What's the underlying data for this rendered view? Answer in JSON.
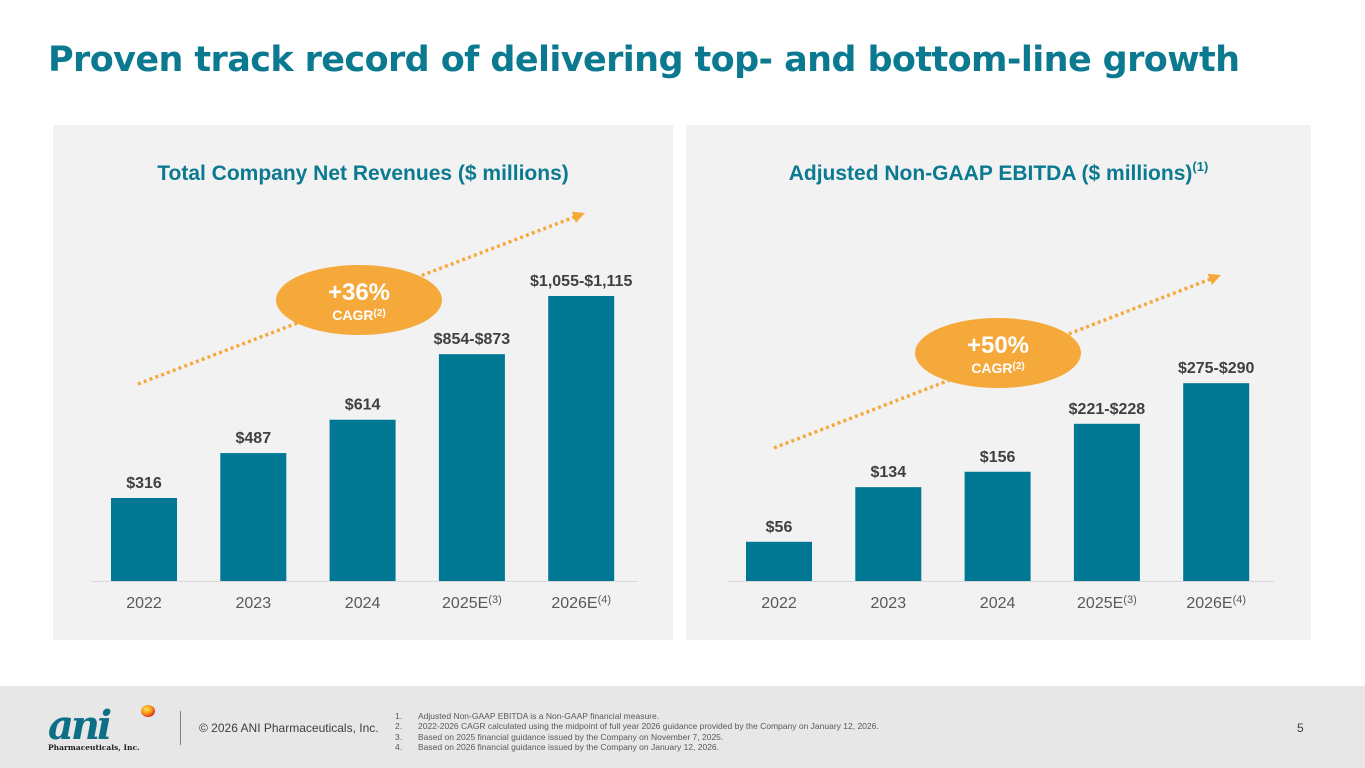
{
  "page": {
    "title": "Proven track record of delivering top- and bottom-line growth",
    "page_number": "5"
  },
  "colors": {
    "brand_teal": "#0b7a91",
    "bar": "#007893",
    "accent_orange": "#f6a93b",
    "label_dark": "#404040",
    "axis_label": "#595959"
  },
  "chart_data": [
    {
      "type": "bar",
      "title": "Total Company Net Revenues ($ millions)",
      "title_footnote": "",
      "xlabel": "",
      "ylabel": "",
      "grid": false,
      "categories": [
        "2022",
        "2023",
        "2024",
        "2025E",
        "2026E"
      ],
      "category_footnotes": [
        "",
        "",
        "",
        "(3)",
        "(4)"
      ],
      "values": [
        316,
        487,
        614,
        863.5,
        1085
      ],
      "value_ranges": [
        null,
        null,
        null,
        [
          854,
          873
        ],
        [
          1055,
          1115
        ]
      ],
      "data_labels": [
        "$316",
        "$487",
        "$614",
        "$854-$873",
        "$1,055-$1,115"
      ],
      "ylim": [
        0,
        1085
      ],
      "annotation": {
        "text": "+36%",
        "subtext": "CAGR",
        "subtext_footnote": "(2)",
        "trend_arrow": "dotted upward arrow"
      }
    },
    {
      "type": "bar",
      "title": "Adjusted Non-GAAP EBITDA ($ millions)",
      "title_footnote": "(1)",
      "xlabel": "",
      "ylabel": "",
      "grid": false,
      "categories": [
        "2022",
        "2023",
        "2024",
        "2025E",
        "2026E"
      ],
      "category_footnotes": [
        "",
        "",
        "",
        "(3)",
        "(4)"
      ],
      "values": [
        56,
        134,
        156,
        224.5,
        282.5
      ],
      "value_ranges": [
        null,
        null,
        null,
        [
          221,
          228
        ],
        [
          275,
          290
        ]
      ],
      "data_labels": [
        "$56",
        "$134",
        "$156",
        "$221-$228",
        "$275-$290"
      ],
      "ylim": [
        0,
        407
      ],
      "annotation": {
        "text": "+50%",
        "subtext": "CAGR",
        "subtext_footnote": "(2)",
        "trend_arrow": "dotted upward arrow"
      }
    }
  ],
  "footer": {
    "logo_text": "ani",
    "logo_subtext": "Pharmaceuticals, Inc.",
    "copyright": "© 2026 ANI Pharmaceuticals, Inc.",
    "footnotes": [
      {
        "num": "1.",
        "text": "Adjusted Non-GAAP EBITDA is a Non-GAAP financial measure."
      },
      {
        "num": "2.",
        "text": "2022-2026 CAGR calculated using the midpoint of full year 2026 guidance provided by the Company on January 12, 2026."
      },
      {
        "num": "3.",
        "text": "Based on 2025 financial guidance issued by the Company on November 7, 2025."
      },
      {
        "num": "4.",
        "text": "Based on 2026 financial guidance issued by the Company on January 12, 2026."
      }
    ]
  }
}
